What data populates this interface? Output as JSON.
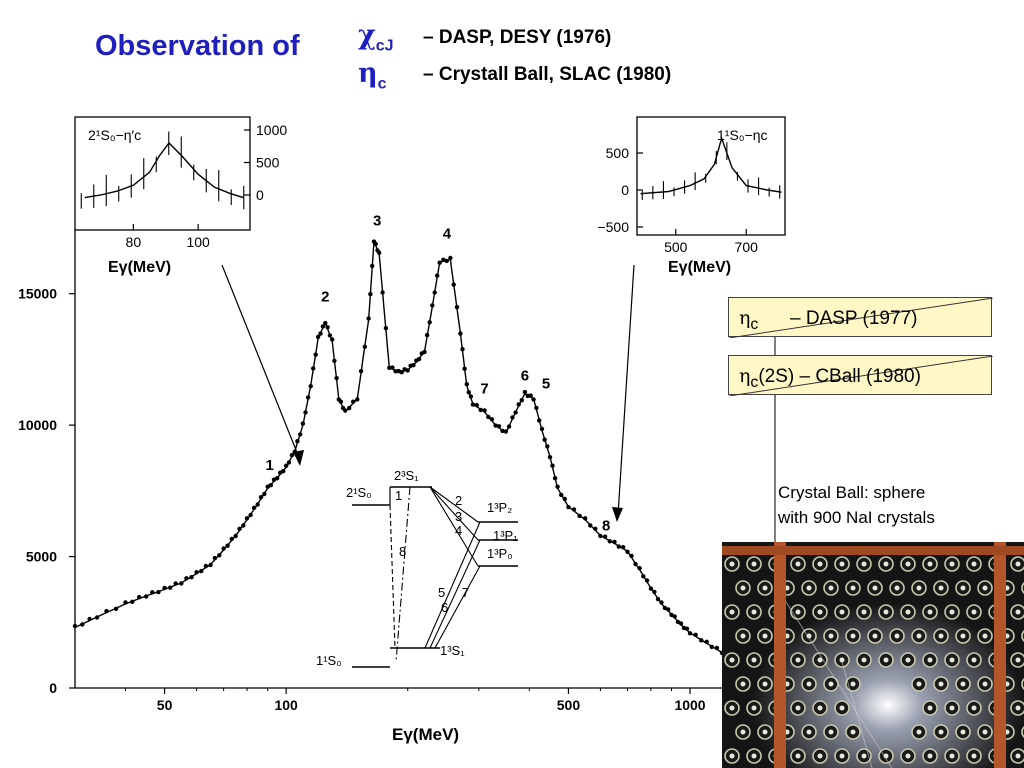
{
  "header": {
    "title": "Observation of",
    "symbol1": "χ",
    "symbol1_sub": "cJ",
    "ref1": "– DASP, DESY (1976)",
    "symbol2": "η",
    "symbol2_sub": "c",
    "ref2": "– Crystall Ball, SLAC (1980)"
  },
  "chart_data": [
    {
      "type": "scatter",
      "title": "",
      "xlabel": "Eγ(MeV)",
      "x_scale": "log",
      "xlim": [
        30,
        1200
      ],
      "ylim": [
        0,
        17500
      ],
      "x_ticks": [
        "50",
        "100",
        "500",
        "1000"
      ],
      "y_ticks": [
        "0",
        "5000",
        "10000",
        "15000"
      ],
      "points": [
        [
          30,
          2300
        ],
        [
          34,
          2700
        ],
        [
          40,
          3200
        ],
        [
          45,
          3500
        ],
        [
          50,
          3750
        ],
        [
          55,
          4000
        ],
        [
          60,
          4350
        ],
        [
          65,
          4700
        ],
        [
          70,
          5250
        ],
        [
          75,
          5800
        ],
        [
          80,
          6400
        ],
        [
          85,
          7000
        ],
        [
          90,
          7600
        ],
        [
          95,
          8000
        ],
        [
          100,
          8400
        ],
        [
          105,
          9000
        ],
        [
          110,
          10000
        ],
        [
          115,
          11500
        ],
        [
          120,
          13300
        ],
        [
          125,
          13900
        ],
        [
          130,
          13200
        ],
        [
          135,
          11000
        ],
        [
          140,
          10500
        ],
        [
          150,
          11000
        ],
        [
          160,
          14000
        ],
        [
          165,
          17000
        ],
        [
          170,
          16500
        ],
        [
          180,
          12200
        ],
        [
          190,
          12000
        ],
        [
          200,
          12100
        ],
        [
          210,
          12400
        ],
        [
          220,
          12800
        ],
        [
          230,
          14500
        ],
        [
          240,
          16200
        ],
        [
          255,
          16300
        ],
        [
          270,
          13500
        ],
        [
          280,
          11500
        ],
        [
          290,
          10800
        ],
        [
          310,
          10500
        ],
        [
          330,
          10000
        ],
        [
          350,
          9700
        ],
        [
          370,
          10500
        ],
        [
          390,
          11200
        ],
        [
          410,
          11000
        ],
        [
          430,
          9800
        ],
        [
          450,
          8800
        ],
        [
          470,
          7600
        ],
        [
          500,
          6900
        ],
        [
          550,
          6400
        ],
        [
          600,
          5800
        ],
        [
          650,
          5500
        ],
        [
          700,
          5200
        ],
        [
          750,
          4500
        ],
        [
          800,
          3800
        ],
        [
          850,
          3200
        ],
        [
          900,
          2800
        ],
        [
          950,
          2400
        ],
        [
          1000,
          2100
        ],
        [
          1100,
          1700
        ],
        [
          1200,
          1350
        ]
      ],
      "peak_labels": [
        {
          "label": "1",
          "x": 91,
          "y": 8300
        },
        {
          "label": "2",
          "x": 125,
          "y": 14700
        },
        {
          "label": "3",
          "x": 168,
          "y": 17600
        },
        {
          "label": "4",
          "x": 250,
          "y": 17100
        },
        {
          "label": "7",
          "x": 310,
          "y": 11200
        },
        {
          "label": "6",
          "x": 390,
          "y": 11700
        },
        {
          "label": "5",
          "x": 440,
          "y": 11400
        },
        {
          "label": "8",
          "x": 620,
          "y": 6000
        }
      ]
    },
    {
      "type": "line",
      "xlabel": "Eγ(MeV)",
      "title": "2¹S₀−η′c",
      "x_ticks": [
        "80",
        "100"
      ],
      "y_ticks": [
        "0",
        "500",
        "1000"
      ],
      "x": [
        65,
        70,
        75,
        80,
        85,
        88,
        91,
        95,
        100,
        105,
        110,
        114
      ],
      "y": [
        -40,
        0,
        60,
        150,
        350,
        600,
        800,
        600,
        320,
        120,
        20,
        -40
      ]
    },
    {
      "type": "line",
      "xlabel": "Eγ(MeV)",
      "title": "1¹S₀−ηc",
      "x_ticks": [
        "500",
        "700"
      ],
      "y_ticks": [
        "−500",
        "0",
        "500"
      ],
      "x": [
        400,
        480,
        540,
        580,
        610,
        630,
        660,
        700,
        760,
        800
      ],
      "y": [
        -50,
        -20,
        60,
        150,
        350,
        700,
        300,
        60,
        0,
        -30
      ]
    }
  ],
  "level_diagram": {
    "levels": [
      "2¹S₀",
      "2³S₁",
      "1³P₂",
      "1³P₁",
      "1³P₀",
      "1¹S₀",
      "1³S₁"
    ],
    "transitions": [
      "1",
      "2",
      "3",
      "4",
      "5",
      "6",
      "7",
      "8"
    ]
  },
  "notes": {
    "box1_symbol": "η",
    "box1_sub": "c",
    "box1_text": "– DASP (1977)",
    "box2_symbol": "η",
    "box2_sub": "c",
    "box2_text": "(2S) – CBall (1980)",
    "caption_line1": "Crystal Ball: sphere",
    "caption_line2": "with 900 NaI crystals"
  }
}
